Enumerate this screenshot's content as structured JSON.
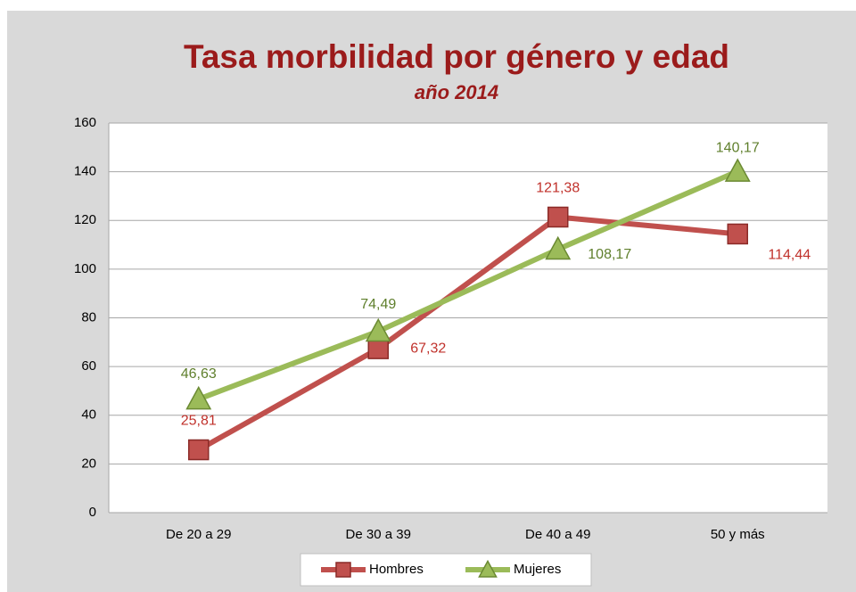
{
  "chart_data": {
    "type": "line",
    "title": "Tasa morbilidad por género y edad",
    "subtitle": "año 2014",
    "categories": [
      "De 20 a 29",
      "De 30 a 39",
      "De 40 a 49",
      "50 y más"
    ],
    "series": [
      {
        "name": "Hombres",
        "color": "#c0504d",
        "marker": "square",
        "values": [
          25.81,
          67.32,
          121.38,
          114.44
        ],
        "value_labels": [
          "25,81",
          "67,32",
          "121,38",
          "114,44"
        ]
      },
      {
        "name": "Mujeres",
        "color": "#9bbb59",
        "marker": "triangle",
        "values": [
          46.63,
          74.49,
          108.17,
          140.17
        ],
        "value_labels": [
          "46,63",
          "74,49",
          "108,17",
          "140,17"
        ]
      }
    ],
    "ylim": [
      0,
      160
    ],
    "yticks": [
      0,
      20,
      40,
      60,
      80,
      100,
      120,
      140,
      160
    ],
    "grid": true,
    "legend": "bottom"
  }
}
